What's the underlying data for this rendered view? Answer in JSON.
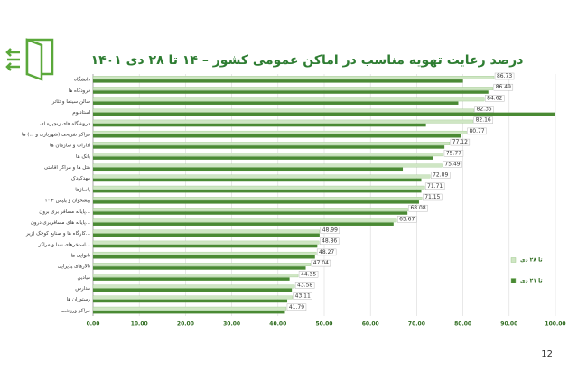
{
  "chart_data": {
    "type": "hbar",
    "title": "درصد رعایت تهویه مناسب در اماکن عمومی کشور – ۱۴ تا ۲۸ دی ۱۴۰۱",
    "page_number": "12",
    "categories": [
      "دانشگاه",
      "فرودگاه ها",
      "سالن سینما و تئاتر",
      "استادیوم",
      "فروشگاه های زنجیره ای",
      "مراکز تفریحی (شهربازی و ...) ها",
      "ادارات و سازمان ها",
      "بانک ها",
      "هتل ها و مراکز اقامتی",
      "مهدکودک",
      "پاساژها",
      "پیشخوان و پلیس +۱۰",
      "پایانه مسافر بری برون...",
      "پایانه های مسافربری درون...",
      "کارگاه ها و صنایع کوچک (زیر...",
      "استخرهای شنا و مراکز...",
      "نانوایی ها",
      "تالارهای پذیرایی",
      "میادین",
      "مدارس",
      "رستوران ها",
      "مراکز ورزشی"
    ],
    "series": [
      {
        "name": "تا ۲۸ دی",
        "color": "#cfe6c4",
        "data_labels": true,
        "values": [
          86.73,
          86.49,
          84.62,
          82.35,
          82.16,
          80.77,
          77.12,
          75.77,
          75.49,
          72.89,
          71.71,
          71.15,
          68.08,
          65.67,
          48.99,
          48.86,
          48.27,
          47.04,
          44.35,
          43.58,
          43.11,
          41.79
        ]
      },
      {
        "name": "تا ۲۱ دی",
        "color": "#4a8a34",
        "data_labels": false,
        "values": [
          80,
          85.5,
          79,
          100,
          72,
          79.5,
          76,
          73.5,
          67,
          71,
          71,
          70.5,
          68,
          65,
          49,
          48.5,
          48,
          46,
          42.5,
          43,
          42,
          41.5
        ]
      }
    ],
    "xlim": [
      0,
      100
    ],
    "xticks": [
      {
        "value": 0,
        "label": "0.00"
      },
      {
        "value": 10,
        "label": "10.00"
      },
      {
        "value": 20,
        "label": "20.00"
      },
      {
        "value": 30,
        "label": "30.00"
      },
      {
        "value": 40,
        "label": "40.00"
      },
      {
        "value": 50,
        "label": "50.00"
      },
      {
        "value": 60,
        "label": "60.00"
      },
      {
        "value": 70,
        "label": "70.00"
      },
      {
        "value": 80,
        "label": "80.00"
      },
      {
        "value": 90,
        "label": "90.00"
      },
      {
        "value": 100,
        "label": "100.00"
      }
    ],
    "grid": true
  }
}
